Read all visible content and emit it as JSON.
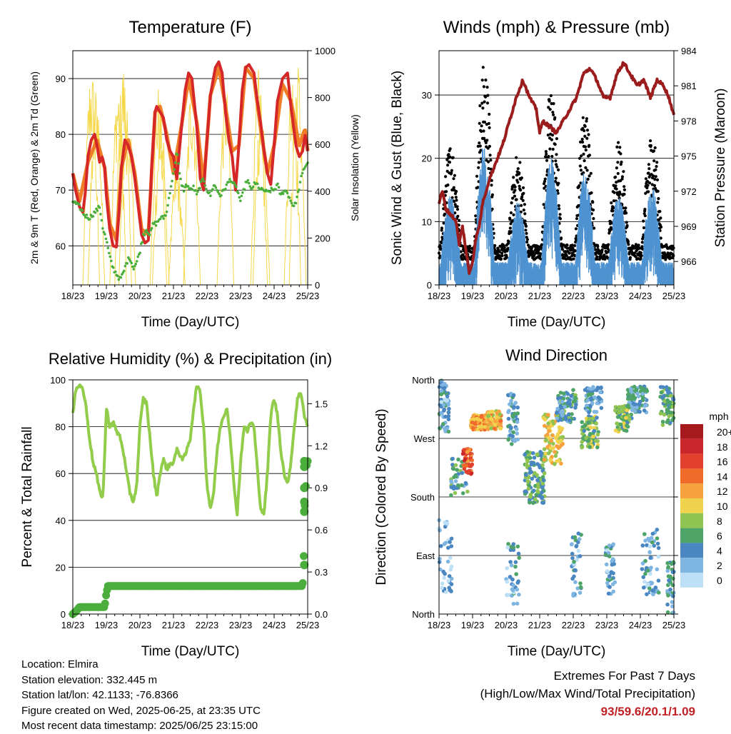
{
  "panels": {
    "temperature": {
      "title": "Temperature (F)",
      "left_axis_label": "2m & 9m T (Red, Orange) & 2m Td (Green)",
      "right_axis_label": "Solar Insolation (Yellow)",
      "x_label": "Time (Day/UTC)"
    },
    "winds": {
      "title": "Winds (mph) & Pressure (mb)",
      "left_axis_label": "Sonic Wind & Gust (Blue, Black)",
      "right_axis_label": "Station Pressure (Maroon)",
      "x_label": "Time (Day/UTC)"
    },
    "humidity": {
      "title": "Relative Humidity (%) & Precipitation (in)",
      "left_axis_label": "Percent & Total Rainfall",
      "x_label": "Time (Day/UTC)"
    },
    "direction": {
      "title": "Wind Direction",
      "left_axis_label": "Direction (Colored By Speed)",
      "x_label": "Time (Day/UTC)",
      "legend_title": "mph"
    }
  },
  "footer": {
    "location": "Location: Elmira",
    "elevation": "Station elevation: 332.445 m",
    "latlon": "Station lat/lon: 42.1133; -76.8366",
    "created": "Figure created on Wed, 2025-06-25, at 23:35 UTC",
    "recent": "Most recent data timestamp: 2025/06/25 23:15:00",
    "extremes_title": "Extremes For Past 7 Days",
    "extremes_subtitle": "(High/Low/Max Wind/Total Precipitation)",
    "extremes_values": "93/59.6/20.1/1.09"
  },
  "colors": {
    "temp_2m": "#d62728",
    "temp_9m": "#f07e26",
    "dewpoint": "#4bae3c",
    "solar": "#f5d84a",
    "wind": "#4f93d1",
    "gust": "#000000",
    "pressure": "#9b1c1c",
    "rh": "#92cc4b",
    "precip": "#4bae3c"
  },
  "chart_data": [
    {
      "type": "line",
      "title": "Temperature (F)",
      "x_ticks": [
        "18/23",
        "19/23",
        "20/23",
        "21/23",
        "22/23",
        "23/23",
        "24/23",
        "25/23"
      ],
      "ylim": [
        53,
        95
      ],
      "y_ticks": [
        60,
        70,
        80,
        90
      ],
      "y2lim": [
        0,
        1000
      ],
      "y2_ticks": [
        0,
        200,
        400,
        600,
        800,
        1000
      ],
      "grid": true,
      "series": [
        {
          "key": "t2m",
          "x": [
            0,
            0.08,
            0.2,
            0.3,
            0.38,
            0.45,
            0.55,
            0.65,
            0.72,
            0.8,
            0.88,
            0.95,
            1.0,
            1.1,
            1.2,
            1.3,
            1.38,
            1.45,
            1.55,
            1.65,
            1.75,
            1.85,
            1.95,
            2.05,
            2.15,
            2.25,
            2.35,
            2.45,
            2.5,
            2.6,
            2.7,
            2.8,
            2.9,
            3.0,
            3.1,
            3.25,
            3.35,
            3.45,
            3.55,
            3.7,
            3.8,
            3.9,
            4.0,
            4.1,
            4.25,
            4.35,
            4.45,
            4.55,
            4.65,
            4.75,
            4.85,
            4.95,
            5.05,
            5.15,
            5.25,
            5.4,
            5.5,
            5.6,
            5.7,
            5.8,
            5.9,
            6.0,
            6.1,
            6.25,
            6.4,
            6.5,
            6.65,
            6.75,
            6.85,
            6.92,
            7.0
          ],
          "y": [
            73,
            70,
            67,
            66,
            70,
            76,
            79,
            80,
            78,
            75,
            76,
            74,
            69,
            63,
            60,
            59.8,
            66,
            74,
            79,
            78,
            76,
            72,
            67,
            62,
            60.5,
            61,
            74,
            84,
            85,
            84,
            83,
            79,
            77,
            76,
            72,
            82,
            88,
            91,
            90,
            81,
            72,
            70,
            79,
            87,
            92,
            93,
            91,
            84,
            79,
            76,
            70,
            78,
            88,
            92,
            92.5,
            91,
            86,
            82,
            77,
            73,
            71,
            78,
            86,
            90,
            91,
            85,
            78,
            76,
            77,
            80,
            77
          ]
        },
        {
          "key": "t9m",
          "x": [
            0,
            0.2,
            0.45,
            0.72,
            0.95,
            1.1,
            1.3,
            1.45,
            1.65,
            1.85,
            2.05,
            2.25,
            2.45,
            2.6,
            2.8,
            3.0,
            3.25,
            3.45,
            3.7,
            3.9,
            4.1,
            4.35,
            4.55,
            4.75,
            4.95,
            5.15,
            5.4,
            5.6,
            5.8,
            6.0,
            6.25,
            6.5,
            6.75,
            6.92,
            7.0
          ],
          "y": [
            73,
            68,
            75,
            79,
            74,
            64,
            61,
            74,
            79,
            73,
            63,
            62,
            84,
            85,
            80,
            73,
            82,
            90,
            82,
            71,
            87,
            92,
            85,
            77,
            78,
            92,
            90,
            81,
            73,
            78,
            89,
            86,
            78,
            81,
            77
          ]
        },
        {
          "key": "td",
          "x": [
            0,
            0.2,
            0.35,
            0.5,
            0.65,
            0.8,
            0.9,
            1.0,
            1.1,
            1.2,
            1.3,
            1.4,
            1.5,
            1.6,
            1.7,
            1.8,
            1.9,
            2.0,
            2.1,
            2.2,
            2.3,
            2.4,
            2.5,
            2.6,
            2.7,
            2.8,
            2.9,
            3.0,
            3.1,
            3.2,
            3.3,
            3.4,
            3.5,
            3.6,
            3.7,
            3.8,
            3.9,
            4.0,
            4.1,
            4.2,
            4.3,
            4.4,
            4.5,
            4.6,
            4.7,
            4.8,
            4.9,
            5.0,
            5.1,
            5.2,
            5.3,
            5.4,
            5.5,
            5.6,
            5.7,
            5.8,
            5.9,
            6.0,
            6.1,
            6.2,
            6.3,
            6.4,
            6.5,
            6.6,
            6.7,
            6.8,
            6.9,
            7.0
          ],
          "y": [
            68,
            67,
            65.5,
            65,
            66,
            67,
            63,
            61,
            58,
            56,
            55,
            54,
            55,
            57,
            58,
            56,
            57,
            59,
            62,
            63,
            62,
            64,
            64,
            65,
            65,
            66,
            70,
            73,
            77,
            72,
            70,
            71,
            70,
            70.5,
            69,
            71,
            72,
            70,
            69,
            71,
            70,
            69,
            70,
            71,
            72,
            71,
            70,
            68,
            70,
            72,
            70,
            71,
            71,
            70,
            70,
            69.5,
            70,
            70,
            71,
            69,
            70,
            69.5,
            68,
            67,
            69,
            72,
            74,
            75
          ]
        }
      ]
    },
    {
      "type": "scatter",
      "title": "Winds (mph) & Pressure (mb)",
      "x_ticks": [
        "18/23",
        "19/23",
        "20/23",
        "21/23",
        "22/23",
        "23/23",
        "24/23",
        "25/23"
      ],
      "ylim": [
        0,
        37
      ],
      "y_ticks": [
        0,
        10,
        20,
        30
      ],
      "y2lim": [
        964,
        984
      ],
      "y2_ticks": [
        966,
        969,
        972,
        975,
        978,
        981,
        984
      ],
      "grid": true,
      "series": [
        {
          "key": "pressure",
          "x": [
            0,
            0.1,
            0.2,
            0.35,
            0.5,
            0.6,
            0.7,
            0.8,
            0.9,
            1.0,
            1.1,
            1.2,
            1.3,
            1.5,
            1.7,
            1.9,
            2.1,
            2.3,
            2.5,
            2.7,
            2.9,
            3.0,
            3.1,
            3.3,
            3.5,
            3.7,
            3.9,
            4.1,
            4.3,
            4.5,
            4.7,
            4.9,
            5.1,
            5.3,
            5.5,
            5.7,
            5.9,
            6.1,
            6.3,
            6.5,
            6.7,
            6.85,
            7.0
          ],
          "y": [
            971,
            972,
            970.5,
            970,
            969.5,
            967.5,
            969,
            967,
            965,
            966,
            968,
            969,
            971,
            973,
            974.5,
            976,
            978,
            980,
            981.5,
            980,
            979,
            977,
            978,
            977.5,
            977,
            978,
            979,
            980,
            982,
            982.5,
            981.5,
            980,
            980,
            982,
            983,
            982,
            981,
            981.5,
            980,
            981.5,
            981,
            980,
            978.5
          ]
        }
      ]
    },
    {
      "type": "line",
      "title": "Relative Humidity (%) & Precipitation (in)",
      "x_ticks": [
        "18/23",
        "19/23",
        "20/23",
        "21/23",
        "22/23",
        "23/23",
        "24/23",
        "25/23"
      ],
      "ylim": [
        0,
        100
      ],
      "y_ticks": [
        0,
        20,
        40,
        60,
        80,
        100
      ],
      "y2lim": [
        0,
        1.67
      ],
      "y2_ticks": [
        0.0,
        0.3,
        0.6,
        0.9,
        1.2,
        1.5
      ],
      "grid": true,
      "series": [
        {
          "key": "rh",
          "x": [
            0,
            0.1,
            0.2,
            0.3,
            0.4,
            0.5,
            0.6,
            0.7,
            0.8,
            0.9,
            1.0,
            1.1,
            1.2,
            1.3,
            1.4,
            1.5,
            1.6,
            1.7,
            1.8,
            1.9,
            2.0,
            2.1,
            2.2,
            2.3,
            2.4,
            2.5,
            2.6,
            2.7,
            2.8,
            2.9,
            3.0,
            3.1,
            3.2,
            3.3,
            3.4,
            3.5,
            3.6,
            3.7,
            3.8,
            3.9,
            4.0,
            4.1,
            4.2,
            4.3,
            4.4,
            4.5,
            4.6,
            4.7,
            4.8,
            4.9,
            5.0,
            5.1,
            5.2,
            5.3,
            5.4,
            5.5,
            5.6,
            5.7,
            5.8,
            5.9,
            6.0,
            6.1,
            6.2,
            6.3,
            6.4,
            6.5,
            6.6,
            6.7,
            6.8,
            6.9,
            7.0
          ],
          "y": [
            85,
            97,
            98,
            96,
            88,
            75,
            65,
            60,
            52,
            50,
            88,
            80,
            82,
            78,
            76,
            70,
            60,
            52,
            48,
            54,
            80,
            92,
            90,
            75,
            60,
            50,
            60,
            66,
            62,
            64,
            65,
            70,
            68,
            66,
            70,
            75,
            88,
            98,
            94,
            80,
            55,
            45,
            52,
            70,
            80,
            85,
            88,
            75,
            55,
            43,
            65,
            80,
            78,
            82,
            80,
            62,
            45,
            43,
            60,
            85,
            92,
            85,
            70,
            60,
            55,
            65,
            80,
            92,
            95,
            85,
            80
          ]
        },
        {
          "key": "precip",
          "x": [
            0,
            0.1,
            0.2,
            0.4,
            0.6,
            0.8,
            0.95,
            1.0,
            1.05,
            1.3,
            2.0,
            3.0,
            4.0,
            5.0,
            6.0,
            6.7,
            6.85,
            6.88,
            6.9,
            6.92,
            6.94,
            6.96,
            7.0
          ],
          "y": [
            0,
            0.02,
            0.05,
            0.05,
            0.05,
            0.05,
            0.05,
            0.15,
            0.2,
            0.2,
            0.2,
            0.2,
            0.2,
            0.2,
            0.2,
            0.2,
            0.2,
            0.35,
            0.73,
            0.8,
            0.9,
            1.05,
            1.09
          ]
        }
      ]
    },
    {
      "type": "scatter",
      "title": "Wind Direction",
      "x_ticks": [
        "18/23",
        "19/23",
        "20/23",
        "21/23",
        "22/23",
        "23/23",
        "24/23",
        "25/23"
      ],
      "y_ticks": [
        "North",
        "East",
        "South",
        "West",
        "North"
      ],
      "ylim": [
        0,
        360
      ],
      "grid": true,
      "legend": {
        "title": "mph",
        "labels": [
          "20+",
          "18",
          "16",
          "14",
          "12",
          "10",
          "8",
          "6",
          "4",
          "2",
          "0"
        ],
        "colors": [
          "#a6191c",
          "#c8262a",
          "#e0402c",
          "#f06a2a",
          "#f7a23f",
          "#f0d24d",
          "#8fc453",
          "#4ea467",
          "#4a87c2",
          "#7fb5e1",
          "#bde0f6"
        ]
      }
    }
  ]
}
